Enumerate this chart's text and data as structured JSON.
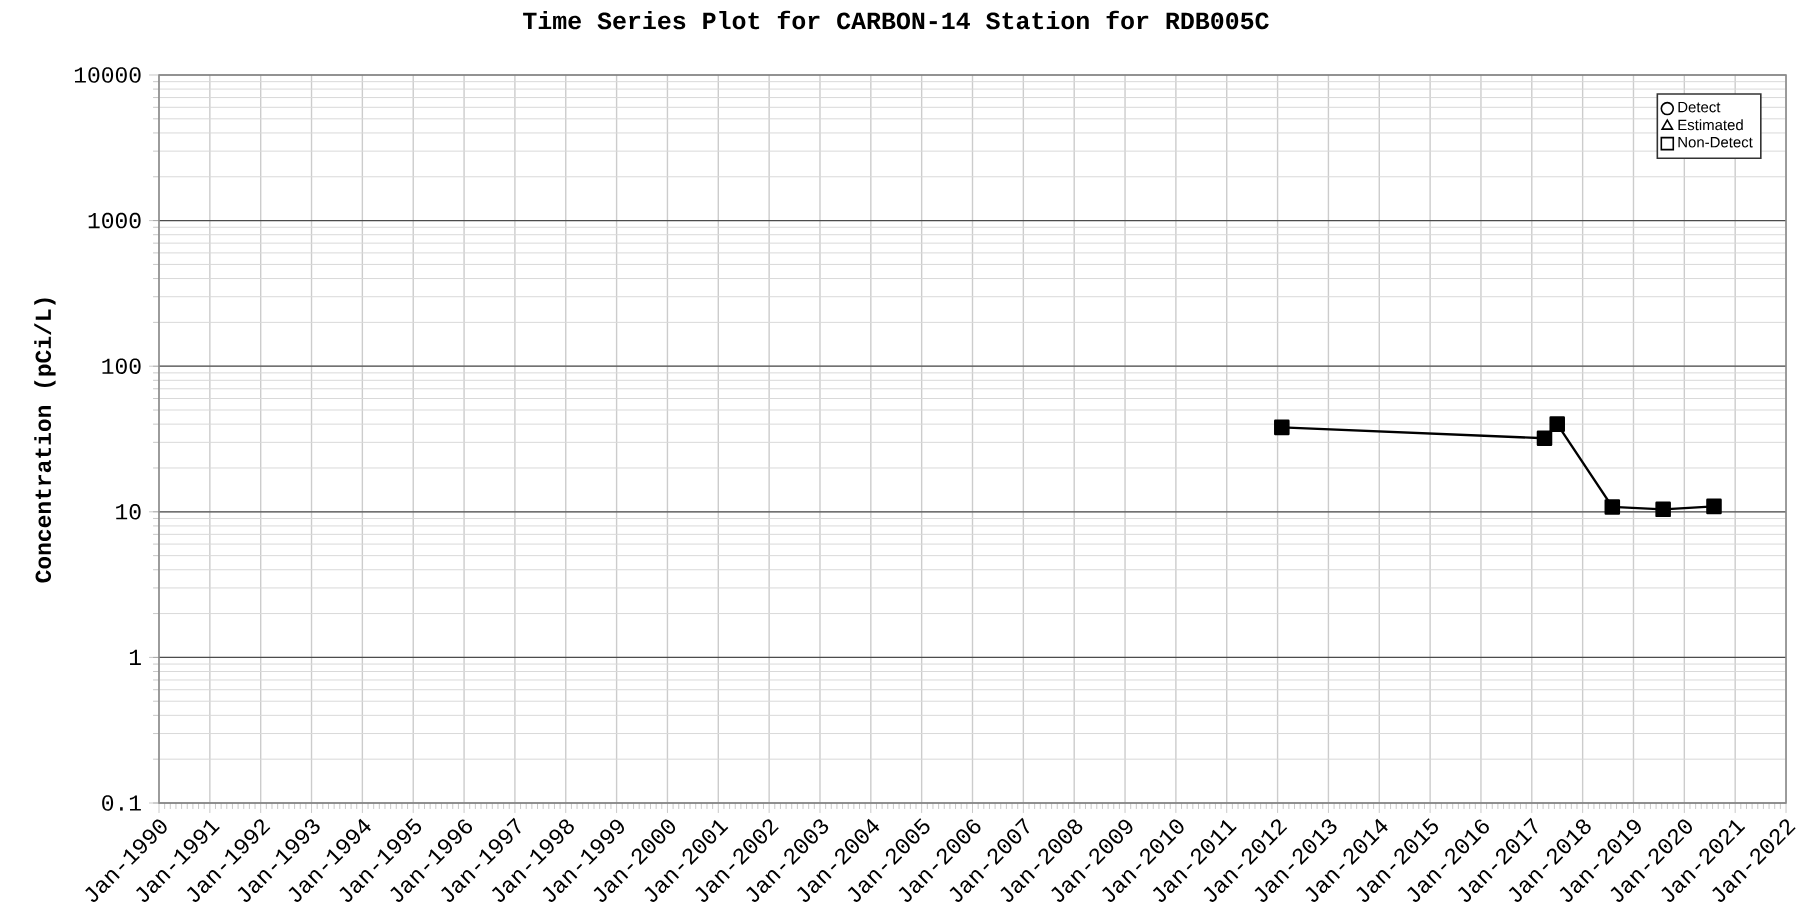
{
  "chart_data": {
    "type": "line",
    "title": "Time Series Plot for CARBON-14 Station for RDB005C",
    "ylabel": "Concentration (pCi/L)",
    "series": [
      {
        "name": "Detect",
        "marker": "circle",
        "color": "#000000"
      },
      {
        "name": "Estimated",
        "marker": "triangle",
        "color": "#000000"
      },
      {
        "name": "Non-Detect",
        "marker": "square",
        "color": "#000000",
        "x": [
          "2012-02",
          "2017-04",
          "2017-07",
          "2018-08",
          "2019-08",
          "2020-08"
        ],
        "values": [
          38,
          32,
          40,
          10.8,
          10.4,
          10.9
        ]
      }
    ],
    "log": "y",
    "grid": true,
    "legend": "top right",
    "line_style": "solid",
    "ylim": [
      0.1,
      10000
    ],
    "yticks": [
      0.1,
      1,
      10,
      100,
      1000,
      10000
    ],
    "xlim": [
      "1990-01",
      "2022-01"
    ],
    "xticks": [
      {
        "value": "1990-01",
        "label": "Jan-1990"
      },
      {
        "value": "1991-01",
        "label": "Jan-1991"
      },
      {
        "value": "1992-01",
        "label": "Jan-1992"
      },
      {
        "value": "1993-01",
        "label": "Jan-1993"
      },
      {
        "value": "1994-01",
        "label": "Jan-1994"
      },
      {
        "value": "1995-01",
        "label": "Jan-1995"
      },
      {
        "value": "1996-01",
        "label": "Jan-1996"
      },
      {
        "value": "1997-01",
        "label": "Jan-1997"
      },
      {
        "value": "1998-01",
        "label": "Jan-1998"
      },
      {
        "value": "1999-01",
        "label": "Jan-1999"
      },
      {
        "value": "2000-01",
        "label": "Jan-2000"
      },
      {
        "value": "2001-01",
        "label": "Jan-2001"
      },
      {
        "value": "2002-01",
        "label": "Jan-2002"
      },
      {
        "value": "2003-01",
        "label": "Jan-2003"
      },
      {
        "value": "2004-01",
        "label": "Jan-2004"
      },
      {
        "value": "2005-01",
        "label": "Jan-2005"
      },
      {
        "value": "2006-01",
        "label": "Jan-2006"
      },
      {
        "value": "2007-01",
        "label": "Jan-2007"
      },
      {
        "value": "2008-01",
        "label": "Jan-2008"
      },
      {
        "value": "2009-01",
        "label": "Jan-2009"
      },
      {
        "value": "2010-01",
        "label": "Jan-2010"
      },
      {
        "value": "2011-01",
        "label": "Jan-2011"
      },
      {
        "value": "2012-01",
        "label": "Jan-2012"
      },
      {
        "value": "2013-01",
        "label": "Jan-2013"
      },
      {
        "value": "2014-01",
        "label": "Jan-2014"
      },
      {
        "value": "2015-01",
        "label": "Jan-2015"
      },
      {
        "value": "2016-01",
        "label": "Jan-2016"
      },
      {
        "value": "2017-01",
        "label": "Jan-2017"
      },
      {
        "value": "2018-01",
        "label": "Jan-2018"
      },
      {
        "value": "2019-01",
        "label": "Jan-2019"
      },
      {
        "value": "2020-01",
        "label": "Jan-2020"
      },
      {
        "value": "2021-01",
        "label": "Jan-2021"
      },
      {
        "value": "2022-01",
        "label": "Jan-2022"
      }
    ]
  }
}
